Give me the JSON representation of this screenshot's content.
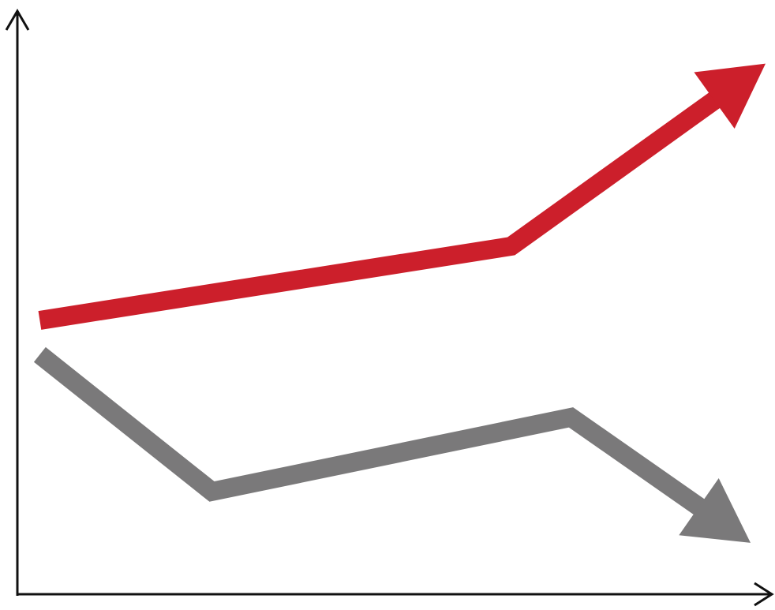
{
  "chart_data": {
    "type": "line",
    "title": "",
    "xlabel": "",
    "ylabel": "",
    "grid": false,
    "legend": "none",
    "xlim": [
      0,
      10
    ],
    "ylim": [
      0,
      10
    ],
    "series": [
      {
        "color": "#cc1f2b",
        "points": [
          [
            0.3,
            4.8
          ],
          [
            6.6,
            6.1
          ],
          [
            10,
            9.3
          ]
        ]
      },
      {
        "color": "#7a797a",
        "points": [
          [
            0.3,
            4.2
          ],
          [
            2.6,
            1.8
          ],
          [
            7.4,
            3.1
          ],
          [
            9.8,
            0.9
          ]
        ]
      }
    ]
  }
}
